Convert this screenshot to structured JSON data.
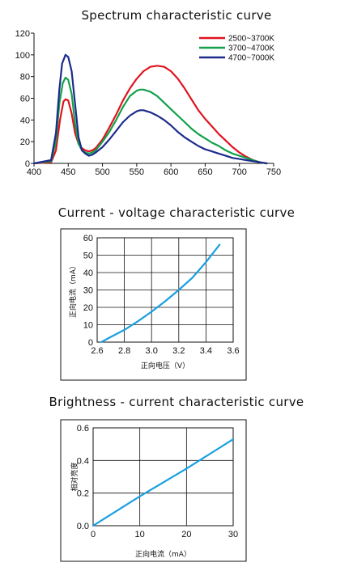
{
  "chart_data": [
    {
      "type": "line",
      "title": "Spectrum characteristic curve",
      "xlabel": "",
      "ylabel": "",
      "xlim": [
        400,
        750
      ],
      "ylim": [
        0,
        120
      ],
      "xticks": [
        400,
        450,
        500,
        550,
        600,
        650,
        700,
        750
      ],
      "yticks": [
        0,
        20,
        40,
        60,
        80,
        100,
        120
      ],
      "grid": false,
      "legend_position": "top-right",
      "series": [
        {
          "name": "2500~3700K",
          "color": "#e0131f",
          "x": [
            400,
            425,
            432,
            438,
            443,
            446,
            450,
            455,
            460,
            465,
            470,
            475,
            480,
            485,
            490,
            500,
            510,
            520,
            530,
            540,
            550,
            560,
            570,
            580,
            590,
            600,
            610,
            620,
            630,
            640,
            650,
            660,
            670,
            680,
            690,
            700,
            710,
            720,
            730,
            740
          ],
          "y": [
            0,
            1,
            12,
            40,
            57,
            59,
            58,
            46,
            28,
            18,
            14,
            12,
            11,
            12,
            14,
            22,
            33,
            45,
            58,
            69,
            78,
            85,
            89,
            90,
            89,
            85,
            78,
            69,
            59,
            49,
            41,
            34,
            27,
            21,
            15,
            10,
            6,
            3,
            1,
            0
          ]
        },
        {
          "name": "3700~4700K",
          "color": "#12a04a",
          "x": [
            400,
            425,
            432,
            437,
            442,
            446,
            450,
            455,
            460,
            465,
            470,
            475,
            480,
            485,
            490,
            500,
            510,
            520,
            530,
            540,
            550,
            555,
            560,
            570,
            580,
            590,
            600,
            610,
            620,
            630,
            640,
            650,
            660,
            670,
            680,
            690,
            700,
            710,
            720,
            730,
            740
          ],
          "y": [
            0,
            2,
            20,
            55,
            74,
            79,
            77,
            64,
            37,
            18,
            12,
            10,
            9,
            10,
            12,
            20,
            29,
            40,
            52,
            62,
            67,
            68,
            68,
            66,
            62,
            56,
            50,
            44,
            38,
            32,
            27,
            23,
            19,
            16,
            12,
            9,
            7,
            5,
            3,
            1,
            0
          ]
        },
        {
          "name": "4700~7000K",
          "color": "#1c2b8c",
          "x": [
            400,
            425,
            432,
            437,
            441,
            446,
            450,
            455,
            460,
            465,
            470,
            475,
            480,
            485,
            490,
            500,
            510,
            520,
            530,
            540,
            550,
            555,
            560,
            570,
            580,
            590,
            600,
            610,
            620,
            630,
            640,
            650,
            660,
            670,
            680,
            690,
            700,
            710,
            720,
            730,
            740
          ],
          "y": [
            0,
            3,
            28,
            68,
            92,
            100,
            98,
            85,
            55,
            24,
            12,
            9,
            7,
            8,
            10,
            15,
            22,
            30,
            38,
            44,
            48,
            49,
            49,
            47,
            44,
            40,
            35,
            29,
            24,
            20,
            16,
            13,
            11,
            9,
            7,
            5,
            4,
            3,
            2,
            1,
            0
          ]
        }
      ]
    },
    {
      "type": "line",
      "title": "Current - voltage characteristic curve",
      "xlabel": "正向电压（V）",
      "ylabel": "正向电流（mA）",
      "xlim": [
        2.6,
        3.6
      ],
      "ylim": [
        0,
        60
      ],
      "xticks": [
        "2.6",
        "2.8",
        "3.0",
        "3.2",
        "3.4",
        "3.6"
      ],
      "yticks": [
        0,
        10,
        20,
        30,
        40,
        50,
        60
      ],
      "grid": true,
      "series": [
        {
          "color": "#1a9fe0",
          "x": [
            2.63,
            2.7,
            2.8,
            2.9,
            3.0,
            3.1,
            3.2,
            3.3,
            3.4,
            3.5
          ],
          "y": [
            0,
            3,
            7,
            12,
            17.5,
            23.5,
            30,
            37,
            46,
            56
          ]
        }
      ]
    },
    {
      "type": "line",
      "title": "Brightness - current characteristic curve",
      "xlabel": "正向电流（mA）",
      "ylabel": "相对亮度",
      "xlim": [
        0,
        30
      ],
      "ylim": [
        0,
        0.6
      ],
      "xticks": [
        "0",
        "10",
        "20",
        "30"
      ],
      "yticks": [
        "0.0",
        "0.2",
        "0.4",
        "0.6"
      ],
      "grid": true,
      "series": [
        {
          "color": "#1a9fe0",
          "x": [
            0,
            10,
            20,
            30
          ],
          "y": [
            0,
            0.18,
            0.35,
            0.53
          ]
        }
      ]
    }
  ]
}
